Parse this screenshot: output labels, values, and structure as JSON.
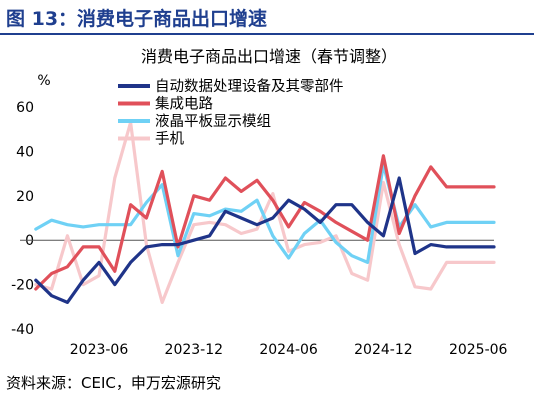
{
  "figure": {
    "title": "图 13：消费电子商品出口增速",
    "source": "资料来源：CEIC，申万宏源研究"
  },
  "chart_data": {
    "type": "line",
    "title": "消费电子商品出口增速（春节调整）",
    "ylabel": "%",
    "xlabel": "",
    "ylim": [
      -40,
      60
    ],
    "yticks": [
      -40,
      -20,
      0,
      20,
      40,
      60
    ],
    "xlim": [
      "2023-01",
      "2025-07"
    ],
    "xticks": [
      "2023-06",
      "2023-12",
      "2024-06",
      "2024-12",
      "2025-06"
    ],
    "grid": false,
    "legend_position": "top",
    "x": [
      "2023-02",
      "2023-03",
      "2023-04",
      "2023-05",
      "2023-06",
      "2023-07",
      "2023-08",
      "2023-09",
      "2023-10",
      "2023-11",
      "2023-12",
      "2024-01",
      "2024-02",
      "2024-03",
      "2024-04",
      "2024-05",
      "2024-06",
      "2024-07",
      "2024-08",
      "2024-09",
      "2024-10",
      "2024-11",
      "2024-12",
      "2025-01",
      "2025-02",
      "2025-03",
      "2025-04",
      "2025-05",
      "2025-06",
      "2025-07"
    ],
    "series": [
      {
        "name": "自动数据处理设备及其零部件",
        "color": "#1f3489",
        "values": [
          -18,
          -25,
          -28,
          -18,
          -10,
          -20,
          -10,
          -3,
          -2,
          -2,
          0,
          2,
          13,
          10,
          7,
          10,
          18,
          14,
          8,
          16,
          16,
          8,
          2,
          28,
          -6,
          -2,
          -3,
          -3,
          -3,
          -3
        ]
      },
      {
        "name": "集成电路",
        "color": "#e0505a",
        "values": [
          -22,
          -15,
          -12,
          -3,
          -3,
          -14,
          16,
          10,
          31,
          -3,
          20,
          18,
          28,
          22,
          27,
          18,
          6,
          17,
          13,
          8,
          4,
          0,
          38,
          3,
          20,
          33,
          24,
          24,
          24,
          24
        ]
      },
      {
        "name": "液晶平板显示模组",
        "color": "#6fd1f5",
        "values": [
          5,
          9,
          7,
          6,
          7,
          7,
          7,
          17,
          25,
          -7,
          12,
          11,
          14,
          13,
          18,
          2,
          -8,
          3,
          9,
          -1,
          -7,
          -10,
          34,
          6,
          16,
          6,
          8,
          8,
          8,
          8
        ]
      },
      {
        "name": "手机",
        "color": "#f7c8cb",
        "values": [
          -20,
          -22,
          2,
          -20,
          -16,
          28,
          53,
          -2,
          -28,
          -10,
          7,
          8,
          7,
          3,
          5,
          21,
          -5,
          -2,
          -1,
          2,
          -15,
          -18,
          26,
          -2,
          -21,
          -22,
          -10,
          -10,
          -10,
          -10
        ]
      }
    ]
  }
}
